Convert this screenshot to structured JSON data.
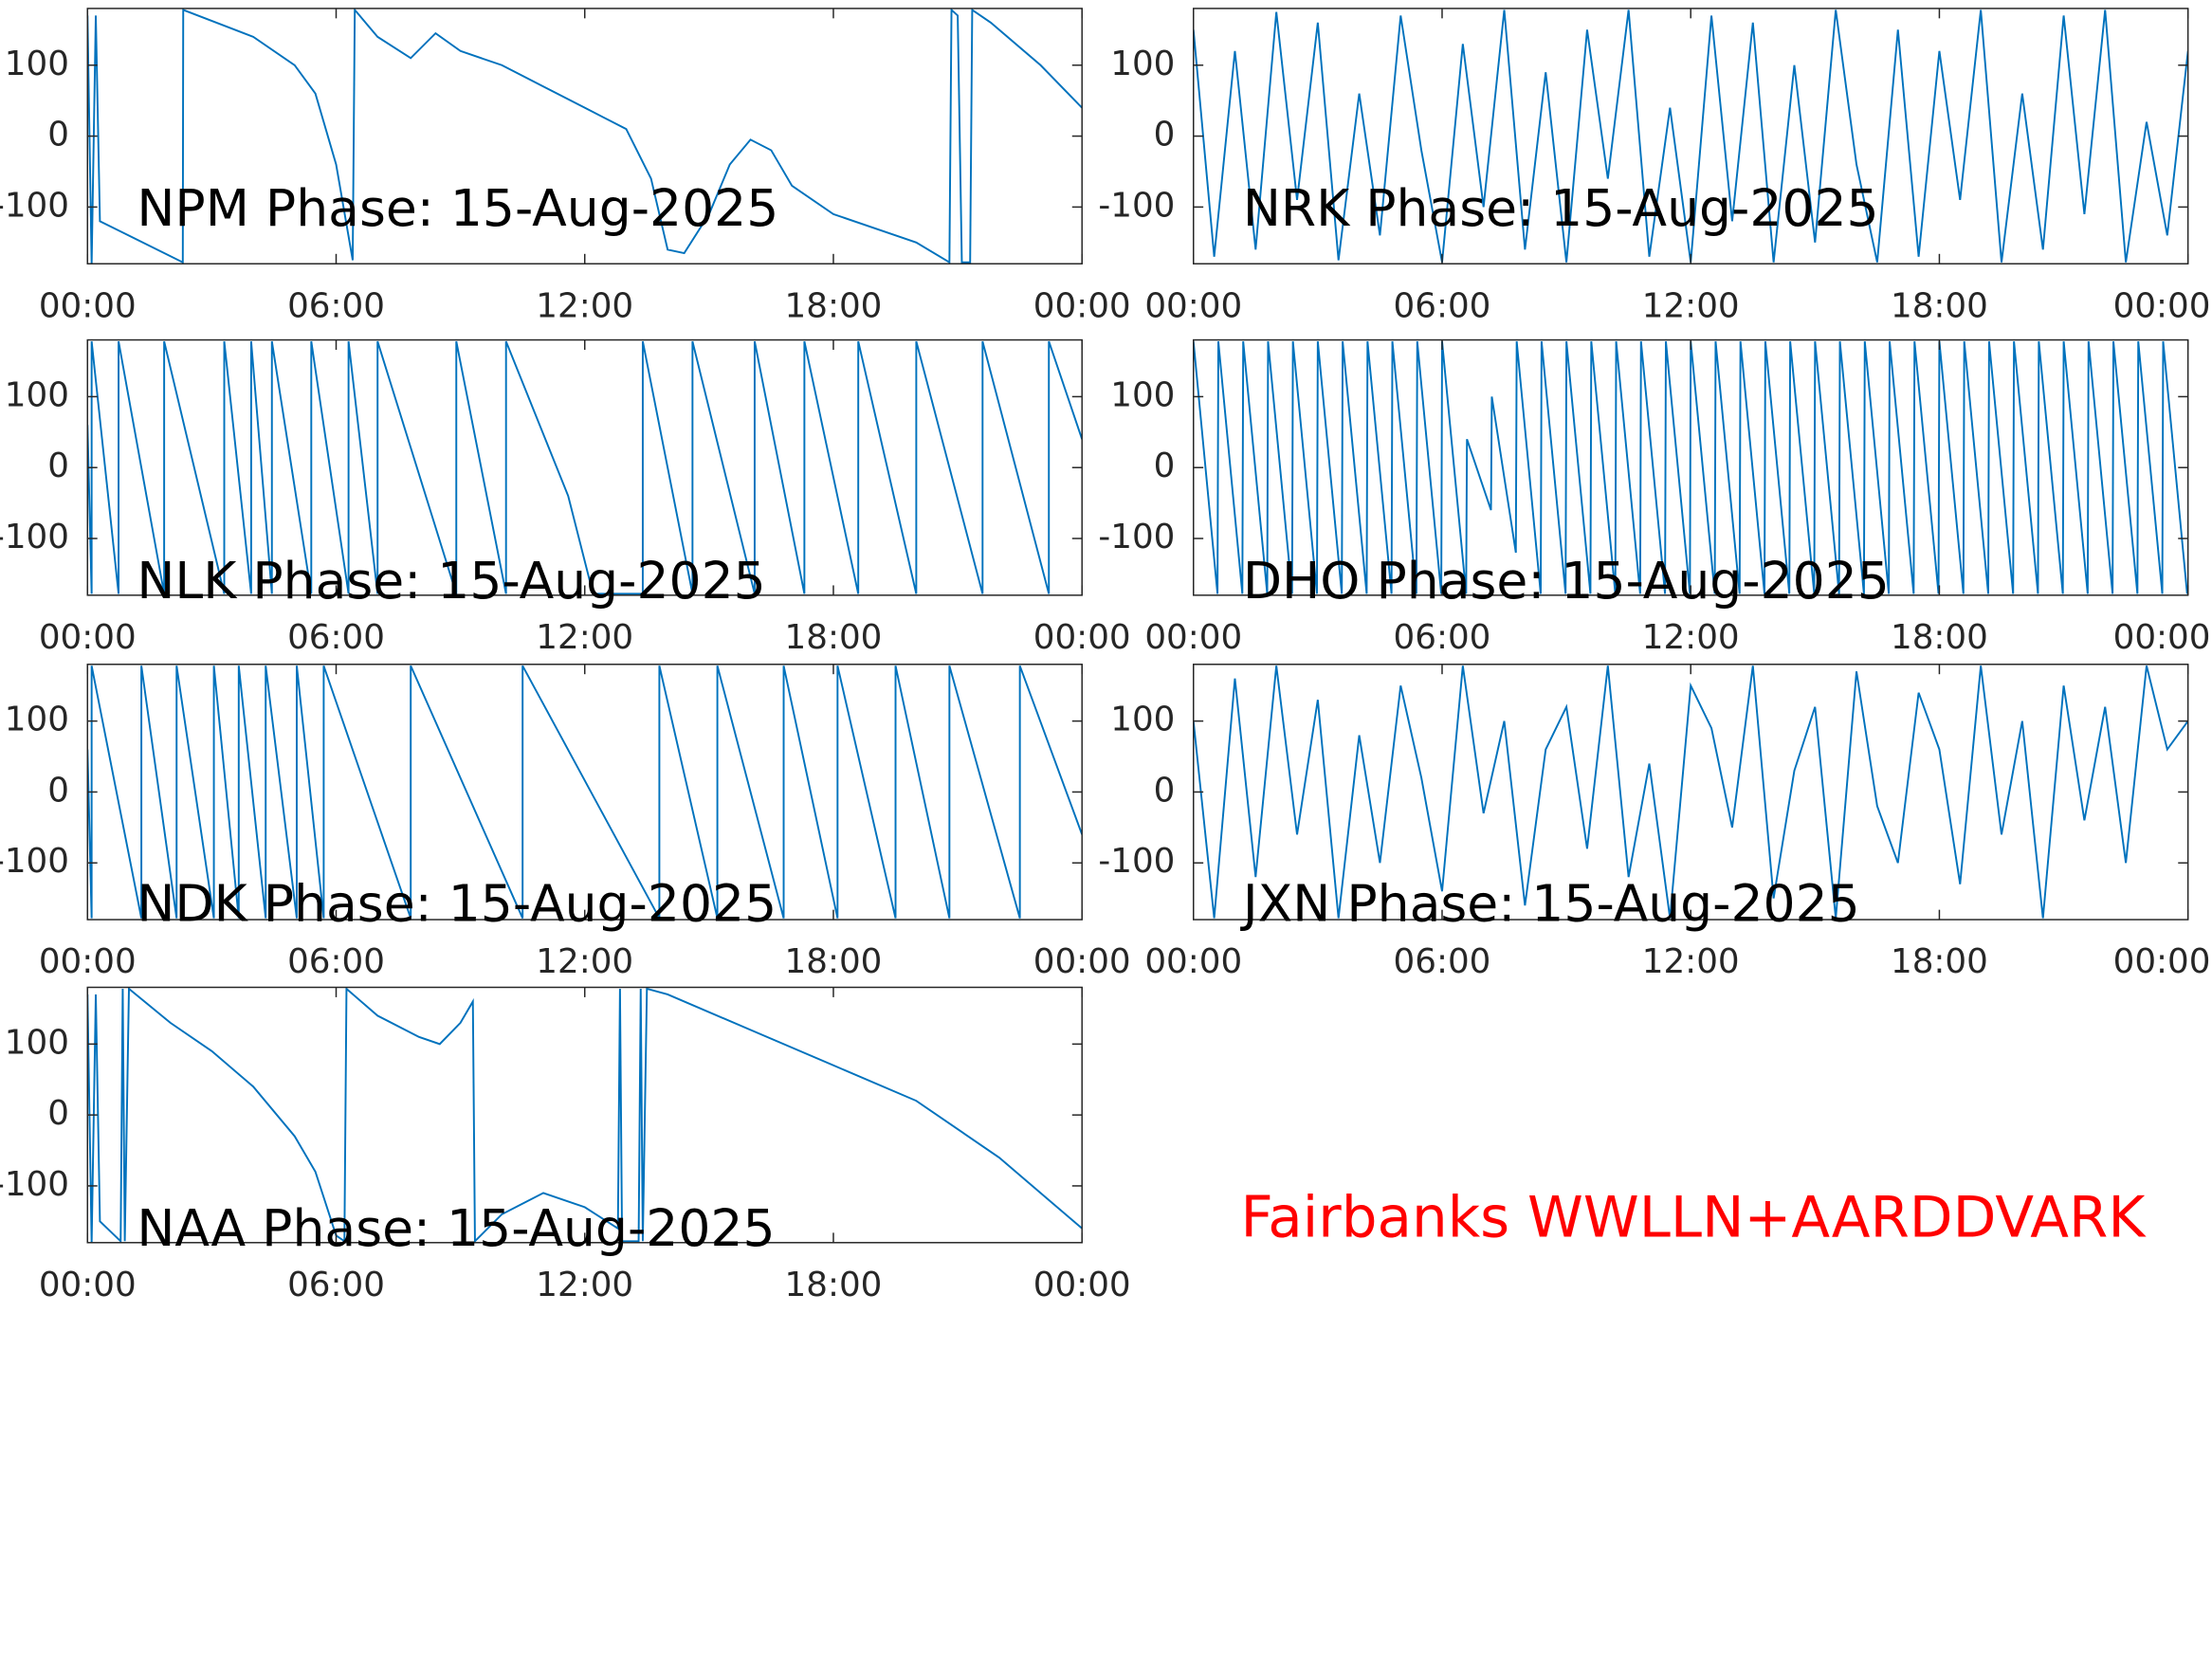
{
  "annotation": "Fairbanks WWLLN+AARDDVARK",
  "chart_data": [
    {
      "type": "line",
      "annotation": "NPM Phase: 15-Aug-2025",
      "color": "#0072bd",
      "x": [
        0,
        0.1,
        0.2,
        0.3,
        2.3,
        2.31,
        4,
        5,
        5.5,
        6,
        6.4,
        6.45,
        7,
        7.8,
        8.4,
        9,
        10,
        11,
        12,
        13,
        13.6,
        14,
        14.4,
        15,
        15.5,
        16,
        16.5,
        17,
        18,
        20,
        20.8,
        20.85,
        21,
        21.1,
        21.3,
        21.35,
        21.8,
        22,
        23,
        24
      ],
      "values": [
        170,
        -180,
        170,
        -120,
        -178,
        178,
        140,
        100,
        60,
        -40,
        -175,
        178,
        140,
        110,
        145,
        120,
        100,
        70,
        40,
        10,
        -60,
        -160,
        -165,
        -110,
        -40,
        -5,
        -20,
        -70,
        -110,
        -150,
        -178,
        178,
        170,
        -178,
        -178,
        178,
        160,
        150,
        100,
        40
      ],
      "xlim": [
        0,
        24
      ],
      "ylim": [
        -180,
        180
      ],
      "xticks": [
        {
          "value": 0,
          "label": "00:00"
        },
        {
          "value": 6,
          "label": "06:00"
        },
        {
          "value": 12,
          "label": "12:00"
        },
        {
          "value": 18,
          "label": "18:00"
        },
        {
          "value": 24,
          "label": "00:00"
        }
      ],
      "yticks": [
        -100,
        0,
        100
      ]
    },
    {
      "type": "line",
      "annotation": "NRK Phase: 15-Aug-2025",
      "color": "#0072bd",
      "x": [
        0,
        0.5,
        1,
        1.5,
        2,
        2.5,
        3,
        3.5,
        4,
        4.5,
        5,
        5.5,
        6,
        6.5,
        7,
        7.5,
        8,
        8.5,
        9,
        9.5,
        10,
        10.5,
        11,
        11.5,
        12,
        12.5,
        13,
        13.5,
        14,
        14.5,
        15,
        15.5,
        16,
        16.5,
        17,
        17.5,
        18,
        18.5,
        19,
        19.5,
        20,
        20.5,
        21,
        21.5,
        22,
        22.5,
        23,
        23.5,
        24
      ],
      "values": [
        150,
        -170,
        120,
        -160,
        175,
        -90,
        160,
        -175,
        60,
        -140,
        170,
        -20,
        -178,
        130,
        -100,
        178,
        -160,
        90,
        -178,
        150,
        -60,
        178,
        -170,
        40,
        -178,
        170,
        -120,
        160,
        -178,
        100,
        -150,
        178,
        -40,
        -178,
        150,
        -170,
        120,
        -90,
        178,
        -178,
        60,
        -160,
        170,
        -110,
        178,
        -178,
        20,
        -140,
        120
      ],
      "xlim": [
        0,
        24
      ],
      "ylim": [
        -180,
        180
      ],
      "xticks": [
        {
          "value": 0,
          "label": "00:00"
        },
        {
          "value": 6,
          "label": "06:00"
        },
        {
          "value": 12,
          "label": "12:00"
        },
        {
          "value": 18,
          "label": "18:00"
        },
        {
          "value": 24,
          "label": "00:00"
        }
      ],
      "yticks": [
        -100,
        0,
        100
      ]
    },
    {
      "type": "line",
      "annotation": "NLK Phase: 15-Aug-2025",
      "color": "#0072bd",
      "x": [
        0,
        0.1,
        0.1,
        0.75,
        0.75,
        1.85,
        1.85,
        3.3,
        3.3,
        3.95,
        3.95,
        4.45,
        4.45,
        5.4,
        5.4,
        6.3,
        6.3,
        7,
        7,
        8.9,
        8.9,
        10.1,
        10.1,
        11.6,
        12.2,
        13.4,
        13.4,
        14.6,
        14.6,
        16.1,
        16.1,
        17.3,
        17.3,
        18.6,
        18.6,
        20,
        20,
        21.6,
        21.6,
        23.2,
        23.2,
        24
      ],
      "values": [
        60,
        -178,
        178,
        -178,
        178,
        -178,
        178,
        -178,
        178,
        -178,
        178,
        -178,
        178,
        -178,
        178,
        -178,
        178,
        -178,
        178,
        -178,
        178,
        -178,
        178,
        -40,
        -178,
        -178,
        178,
        -178,
        178,
        -178,
        178,
        -178,
        178,
        -178,
        178,
        -178,
        178,
        -178,
        178,
        -178,
        178,
        40
      ],
      "xlim": [
        0,
        24
      ],
      "ylim": [
        -180,
        180
      ],
      "xticks": [
        {
          "value": 0,
          "label": "00:00"
        },
        {
          "value": 6,
          "label": "06:00"
        },
        {
          "value": 12,
          "label": "12:00"
        },
        {
          "value": 18,
          "label": "18:00"
        },
        {
          "value": 24,
          "label": "00:00"
        }
      ],
      "yticks": [
        -100,
        0,
        100
      ]
    },
    {
      "type": "line",
      "annotation": "DHO Phase: 15-Aug-2025",
      "color": "#0072bd",
      "x": [
        0,
        0.58,
        0.6,
        1.18,
        1.2,
        1.78,
        1.8,
        2.38,
        2.4,
        2.98,
        3,
        3.58,
        3.6,
        4.18,
        4.2,
        4.78,
        4.8,
        5.38,
        5.4,
        5.98,
        6,
        6.58,
        6.6,
        7.18,
        7.2,
        7.78,
        7.8,
        8.38,
        8.4,
        8.98,
        9,
        9.58,
        9.6,
        10.18,
        10.2,
        10.78,
        10.8,
        11.38,
        11.4,
        11.98,
        12,
        12.58,
        12.6,
        13.18,
        13.2,
        13.78,
        13.8,
        14.38,
        14.4,
        14.98,
        15,
        15.58,
        15.6,
        16.18,
        16.2,
        16.78,
        16.8,
        17.38,
        17.4,
        17.98,
        18,
        18.58,
        18.6,
        19.18,
        19.2,
        19.78,
        19.8,
        20.38,
        20.4,
        20.98,
        21,
        21.58,
        21.6,
        22.18,
        22.2,
        22.78,
        22.8,
        23.38,
        23.4,
        23.98
      ],
      "values": [
        178,
        -178,
        178,
        -178,
        178,
        -178,
        178,
        -178,
        178,
        -178,
        178,
        -178,
        178,
        -178,
        178,
        -178,
        178,
        -178,
        178,
        -178,
        178,
        -178,
        40,
        -60,
        100,
        -120,
        178,
        -178,
        178,
        -178,
        178,
        -178,
        178,
        -178,
        178,
        -178,
        178,
        -178,
        178,
        -178,
        178,
        -178,
        178,
        -178,
        178,
        -178,
        178,
        -178,
        178,
        -178,
        178,
        -178,
        178,
        -178,
        178,
        -178,
        178,
        -178,
        178,
        -178,
        178,
        -178,
        178,
        -178,
        178,
        -178,
        178,
        -178,
        178,
        -178,
        178,
        -178,
        178,
        -178,
        178,
        -178,
        178,
        -178,
        178,
        -178
      ],
      "xlim": [
        0,
        24
      ],
      "ylim": [
        -180,
        180
      ],
      "xticks": [
        {
          "value": 0,
          "label": "00:00"
        },
        {
          "value": 6,
          "label": "06:00"
        },
        {
          "value": 12,
          "label": "12:00"
        },
        {
          "value": 18,
          "label": "18:00"
        },
        {
          "value": 24,
          "label": "00:00"
        }
      ],
      "yticks": [
        -100,
        0,
        100
      ]
    },
    {
      "type": "line",
      "annotation": "NDK Phase: 15-Aug-2025",
      "color": "#0072bd",
      "x": [
        0,
        0.1,
        0.1,
        1.3,
        1.3,
        2.15,
        2.15,
        3.05,
        3.05,
        3.65,
        3.65,
        4.3,
        4.3,
        5.05,
        5.05,
        5.7,
        5.7,
        7.8,
        7.8,
        10.5,
        10.5,
        13.8,
        13.8,
        15.2,
        15.2,
        16.8,
        16.8,
        18.1,
        18.1,
        19.5,
        19.5,
        20.8,
        20.8,
        22.5,
        22.5,
        24
      ],
      "values": [
        60,
        -178,
        178,
        -178,
        178,
        -178,
        178,
        -178,
        178,
        -178,
        178,
        -178,
        178,
        -178,
        178,
        -178,
        178,
        -178,
        178,
        -178,
        178,
        -178,
        178,
        -178,
        178,
        -178,
        178,
        -178,
        178,
        -178,
        178,
        -178,
        178,
        -178,
        178,
        -60
      ],
      "xlim": [
        0,
        24
      ],
      "ylim": [
        -180,
        180
      ],
      "xticks": [
        {
          "value": 0,
          "label": "00:00"
        },
        {
          "value": 6,
          "label": "06:00"
        },
        {
          "value": 12,
          "label": "12:00"
        },
        {
          "value": 18,
          "label": "18:00"
        },
        {
          "value": 24,
          "label": "00:00"
        }
      ],
      "yticks": [
        -100,
        0,
        100
      ]
    },
    {
      "type": "line",
      "annotation": "JXN Phase: 15-Aug-2025",
      "color": "#0072bd",
      "x": [
        0,
        0.5,
        1,
        1.5,
        2,
        2.5,
        3,
        3.5,
        4,
        4.5,
        5,
        5.5,
        6,
        6.5,
        7,
        7.5,
        8,
        8.5,
        9,
        9.5,
        10,
        10.5,
        11,
        11.5,
        12,
        12.5,
        13,
        13.5,
        14,
        14.5,
        15,
        15.5,
        16,
        16.5,
        17,
        17.5,
        18,
        18.5,
        19,
        19.5,
        20,
        20.5,
        21,
        21.5,
        22,
        22.5,
        23,
        23.5,
        24
      ],
      "values": [
        100,
        -178,
        160,
        -120,
        178,
        -60,
        130,
        -178,
        80,
        -100,
        150,
        20,
        -140,
        178,
        -30,
        100,
        -160,
        60,
        120,
        -80,
        178,
        -120,
        40,
        -178,
        150,
        90,
        -50,
        178,
        -150,
        30,
        120,
        -178,
        170,
        -20,
        -100,
        140,
        60,
        -130,
        178,
        -60,
        100,
        -178,
        150,
        -40,
        120,
        -100,
        178,
        60,
        100
      ],
      "xlim": [
        0,
        24
      ],
      "ylim": [
        -180,
        180
      ],
      "xticks": [
        {
          "value": 0,
          "label": "00:00"
        },
        {
          "value": 6,
          "label": "06:00"
        },
        {
          "value": 12,
          "label": "12:00"
        },
        {
          "value": 18,
          "label": "18:00"
        },
        {
          "value": 24,
          "label": "00:00"
        }
      ],
      "yticks": [
        -100,
        0,
        100
      ]
    },
    {
      "type": "line",
      "annotation": "NAA Phase: 15-Aug-2025",
      "color": "#0072bd",
      "x": [
        0,
        0.1,
        0.2,
        0.3,
        0.8,
        0.85,
        0.9,
        1,
        2,
        3,
        4,
        5,
        5.5,
        6,
        6.2,
        6.25,
        7,
        8,
        8.5,
        9,
        9.3,
        9.35,
        10,
        11,
        12,
        12.8,
        12.85,
        12.9,
        13.3,
        13.35,
        13.4,
        13.5,
        14,
        16,
        18,
        20,
        22,
        24
      ],
      "values": [
        170,
        -180,
        170,
        -150,
        -178,
        178,
        -178,
        178,
        130,
        90,
        40,
        -30,
        -80,
        -170,
        -178,
        178,
        140,
        110,
        100,
        130,
        160,
        -178,
        -140,
        -110,
        -130,
        -160,
        178,
        -178,
        -178,
        178,
        -178,
        178,
        170,
        120,
        70,
        20,
        -60,
        -160
      ],
      "xlim": [
        0,
        24
      ],
      "ylim": [
        -180,
        180
      ],
      "xticks": [
        {
          "value": 0,
          "label": "00:00"
        },
        {
          "value": 6,
          "label": "06:00"
        },
        {
          "value": 12,
          "label": "12:00"
        },
        {
          "value": 18,
          "label": "18:00"
        },
        {
          "value": 24,
          "label": "00:00"
        }
      ],
      "yticks": [
        -100,
        0,
        100
      ]
    }
  ]
}
